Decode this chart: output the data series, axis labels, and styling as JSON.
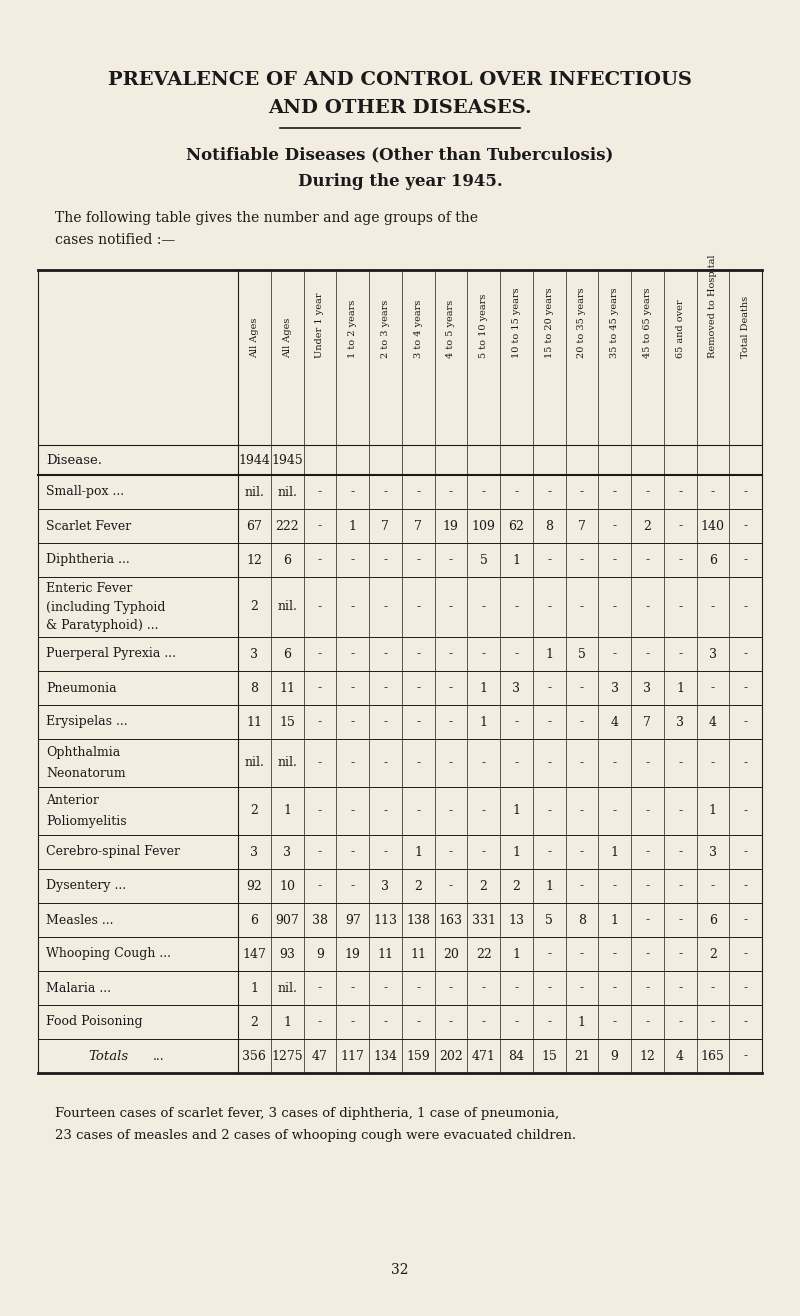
{
  "bg_color": "#f2ede0",
  "text_color": "#1a1a1a",
  "title1": "PREVALENCE OF AND CONTROL OVER INFECTIOUS",
  "title2": "AND OTHER DISEASES.",
  "subtitle1": "Notifiable Diseases (Other than Tuberculosis)",
  "subtitle2": "During the year 1945.",
  "intro_line1": "The following table gives the number and age groups of the",
  "intro_line2": "cases notified :—",
  "col_headers": [
    "All Ages",
    "All Ages",
    "Under 1 year",
    "1 to 2 years",
    "2 to 3 years",
    "3 to 4 years",
    "4 to 5 years",
    "5 to 10 years",
    "10 to 15 years",
    "15 to 20 years",
    "20 to 35 years",
    "35 to 45 years",
    "45 to 65 years",
    "65 and over",
    "Removed to Hospital",
    "Total Deaths"
  ],
  "rows": [
    {
      "disease": "Small-pox ...",
      "extra": "...",
      "multiline": false,
      "vals": [
        "nil.",
        "nil.",
        "-",
        "-",
        "-",
        "-",
        "-",
        "-",
        "-",
        "-",
        "-",
        "-",
        "-",
        "-",
        "-",
        "-"
      ]
    },
    {
      "disease": "Scarlet Fever",
      "extra": "...",
      "multiline": false,
      "vals": [
        "67",
        "222",
        "-",
        "1",
        "7",
        "7",
        "19",
        "109",
        "62",
        "8",
        "7",
        "-",
        "2",
        "-",
        "140",
        "-"
      ]
    },
    {
      "disease": "Diphtheria ...",
      "extra": "...",
      "multiline": false,
      "vals": [
        "12",
        "6",
        "-",
        "-",
        "-",
        "-",
        "-",
        "5",
        "1",
        "-",
        "-",
        "-",
        "-",
        "-",
        "6",
        "-"
      ]
    },
    {
      "disease": "Enteric Fever",
      "extra": "...",
      "line2": "(including Typhoid",
      "line3": "& Paratyphoid) ...",
      "multiline": true,
      "vals": [
        "2",
        "nil.",
        "-",
        "-",
        "-",
        "-",
        "-",
        "-",
        "-",
        "-",
        "-",
        "-",
        "-",
        "-",
        "-",
        "-"
      ]
    },
    {
      "disease": "Puerperal Pyrexia ...",
      "extra": "",
      "multiline": false,
      "vals": [
        "3",
        "6",
        "-",
        "-",
        "-",
        "-",
        "-",
        "-",
        "-",
        "1",
        "5",
        "-",
        "-",
        "-",
        "3",
        "-"
      ]
    },
    {
      "disease": "Pneumonia",
      "extra": "...",
      "multiline": false,
      "vals": [
        "8",
        "11",
        "-",
        "-",
        "-",
        "-",
        "-",
        "1",
        "3",
        "-",
        "-",
        "3",
        "3",
        "1",
        "-",
        "-"
      ]
    },
    {
      "disease": "Erysipelas ...",
      "extra": "...",
      "multiline": false,
      "vals": [
        "11",
        "15",
        "-",
        "-",
        "-",
        "-",
        "-",
        "1",
        "-",
        "-",
        "-",
        "4",
        "7",
        "3",
        "4",
        "-"
      ]
    },
    {
      "disease": "Ophthalmia",
      "extra": "...",
      "line2": "Neonatorum",
      "line2extra": "...",
      "multiline": true,
      "vals": [
        "nil.",
        "nil.",
        "-",
        "-",
        "-",
        "-",
        "-",
        "-",
        "-",
        "-",
        "-",
        "-",
        "-",
        "-",
        "-",
        "-"
      ]
    },
    {
      "disease": "Anterior",
      "extra": "",
      "line2": "Poliomyelitis",
      "line2extra": "...",
      "multiline": true,
      "vals": [
        "2",
        "1",
        "-",
        "-",
        "-",
        "-",
        "-",
        "-",
        "1",
        "-",
        "-",
        "-",
        "-",
        "-",
        "1",
        "-"
      ]
    },
    {
      "disease": "Cerebro-spinal Fever",
      "extra": "",
      "multiline": false,
      "vals": [
        "3",
        "3",
        "-",
        "-",
        "-",
        "1",
        "-",
        "-",
        "1",
        "-",
        "-",
        "1",
        "-",
        "-",
        "3",
        "-"
      ]
    },
    {
      "disease": "Dysentery ...",
      "extra": "...",
      "multiline": false,
      "vals": [
        "92",
        "10",
        "-",
        "-",
        "3",
        "2",
        "-",
        "2",
        "2",
        "1",
        "-",
        "-",
        "-",
        "-",
        "-",
        "-"
      ]
    },
    {
      "disease": "Measles ...",
      "extra": "...",
      "multiline": false,
      "vals": [
        "6",
        "907",
        "38",
        "97",
        "113",
        "138",
        "163",
        "331",
        "13",
        "5",
        "8",
        "1",
        "-",
        "-",
        "6",
        "-"
      ]
    },
    {
      "disease": "Whooping Cough ...",
      "extra": "",
      "multiline": false,
      "vals": [
        "147",
        "93",
        "9",
        "19",
        "11",
        "11",
        "20",
        "22",
        "1",
        "-",
        "-",
        "-",
        "-",
        "-",
        "2",
        "-"
      ]
    },
    {
      "disease": "Malaria ...",
      "extra": "...",
      "multiline": false,
      "vals": [
        "1",
        "nil.",
        "-",
        "-",
        "-",
        "-",
        "-",
        "-",
        "-",
        "-",
        "-",
        "-",
        "-",
        "-",
        "-",
        "-"
      ]
    },
    {
      "disease": "Food Poisoning",
      "extra": "...",
      "multiline": false,
      "vals": [
        "2",
        "1",
        "-",
        "-",
        "-",
        "-",
        "-",
        "-",
        "-",
        "-",
        "1",
        "-",
        "-",
        "-",
        "-",
        "-"
      ]
    }
  ],
  "totals_row": [
    "356",
    "1275",
    "47",
    "117",
    "134",
    "159",
    "202",
    "471",
    "84",
    "15",
    "21",
    "9",
    "12",
    "4",
    "165",
    "-"
  ],
  "footnote1": "Fourteen cases of scarlet fever, 3 cases of diphtheria, 1 case of pneumonia,",
  "footnote2": "23 cases of measles and 2 cases of whooping cough were evacuated children.",
  "page_number": "32"
}
